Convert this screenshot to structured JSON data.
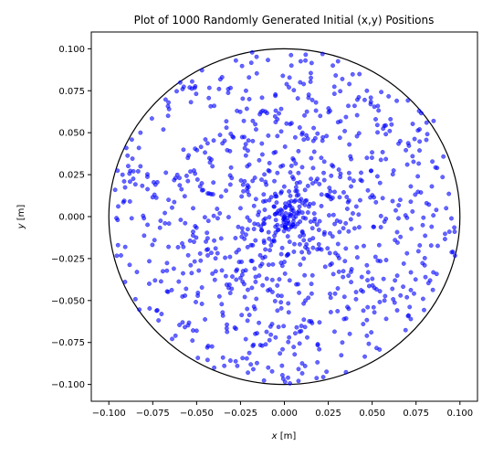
{
  "chart_data": {
    "type": "scatter",
    "title": "Plot of 1000 Randomly Generated Initial (x,y) Positions",
    "xlabel_var": "x",
    "xlabel_unit": " [m]",
    "ylabel_var": "y",
    "ylabel_unit": " [m]",
    "xlim": [
      -0.11,
      0.11
    ],
    "ylim": [
      -0.11,
      0.11
    ],
    "x_ticks": [
      -0.1,
      -0.075,
      -0.05,
      -0.025,
      0.0,
      0.025,
      0.05,
      0.075,
      0.1
    ],
    "x_tick_labels": [
      "−0.100",
      "−0.075",
      "−0.050",
      "−0.025",
      "0.000",
      "0.025",
      "0.050",
      "0.075",
      "0.100"
    ],
    "y_ticks": [
      -0.1,
      -0.075,
      -0.05,
      -0.025,
      0.0,
      0.025,
      0.05,
      0.075,
      0.1
    ],
    "y_tick_labels": [
      "−0.100",
      "−0.075",
      "−0.050",
      "−0.025",
      "0.000",
      "0.025",
      "0.050",
      "0.075",
      "0.100"
    ],
    "boundary_circle": {
      "cx": 0.0,
      "cy": 0.0,
      "r": 0.1,
      "color": "#000000"
    },
    "point_count": 1000,
    "point_color": "#0000ff",
    "point_alpha": 0.6,
    "grid": false,
    "points": [
      [
        0.0,
        0.0
      ],
      [
        0.004,
        0.09
      ],
      [
        0.012,
        0.093
      ],
      [
        0.009,
        0.08
      ],
      [
        0.011,
        0.079
      ],
      [
        -0.066,
        0.068
      ],
      [
        -0.058,
        0.076
      ],
      [
        -0.032,
        0.076
      ],
      [
        -0.02,
        0.07
      ],
      [
        0.033,
        0.082
      ],
      [
        0.037,
        0.079
      ],
      [
        0.047,
        0.075
      ],
      [
        0.064,
        0.069
      ],
      [
        0.081,
        0.056
      ],
      [
        0.085,
        0.057
      ],
      [
        0.077,
        0.052
      ],
      [
        -0.082,
        0.05
      ],
      [
        -0.086,
        0.027
      ],
      [
        -0.082,
        0.03
      ],
      [
        -0.088,
        0.009
      ],
      [
        -0.095,
        -0.002
      ],
      [
        -0.087,
        -0.001
      ],
      [
        -0.08,
        -0.001
      ],
      [
        -0.074,
        -0.014
      ],
      [
        -0.084,
        -0.033
      ],
      [
        -0.077,
        -0.04
      ],
      [
        -0.07,
        -0.058
      ],
      [
        -0.058,
        -0.063
      ],
      [
        -0.05,
        -0.068
      ],
      [
        -0.04,
        -0.09
      ],
      [
        -0.035,
        -0.084
      ],
      [
        -0.022,
        -0.073
      ],
      [
        -0.018,
        -0.077
      ],
      [
        -0.005,
        -0.072
      ],
      [
        0.013,
        -0.072
      ],
      [
        0.019,
        -0.076
      ],
      [
        0.033,
        -0.075
      ],
      [
        0.047,
        -0.071
      ],
      [
        0.072,
        -0.061
      ],
      [
        0.079,
        -0.049
      ],
      [
        0.083,
        -0.038
      ],
      [
        0.096,
        -0.021
      ],
      [
        0.094,
        -0.009
      ],
      [
        0.097,
        -0.009
      ],
      [
        0.081,
        0.008
      ],
      [
        0.084,
        0.018
      ],
      [
        0.076,
        0.024
      ],
      [
        0.073,
        0.036
      ],
      [
        0.087,
        0.029
      ],
      [
        -0.04,
        0.066
      ],
      [
        -0.027,
        0.063
      ],
      [
        -0.014,
        0.061
      ],
      [
        -0.004,
        0.058
      ],
      [
        0.018,
        0.068
      ],
      [
        0.026,
        0.063
      ],
      [
        0.04,
        0.066
      ],
      [
        0.052,
        0.058
      ],
      [
        0.06,
        0.051
      ],
      [
        0.066,
        0.045
      ],
      [
        0.07,
        0.031
      ],
      [
        0.072,
        0.018
      ],
      [
        0.066,
        0.01
      ],
      [
        0.065,
        -0.001
      ],
      [
        0.063,
        -0.014
      ],
      [
        0.068,
        -0.028
      ],
      [
        0.063,
        -0.038
      ],
      [
        0.057,
        -0.05
      ],
      [
        0.045,
        -0.056
      ],
      [
        0.034,
        -0.061
      ],
      [
        0.02,
        -0.063
      ],
      [
        0.007,
        -0.066
      ],
      [
        -0.007,
        -0.064
      ],
      [
        -0.021,
        -0.062
      ],
      [
        -0.035,
        -0.059
      ],
      [
        -0.047,
        -0.052
      ],
      [
        -0.056,
        -0.043
      ],
      [
        -0.063,
        -0.031
      ],
      [
        -0.066,
        -0.018
      ],
      [
        -0.068,
        -0.004
      ],
      [
        -0.066,
        0.01
      ],
      [
        -0.062,
        0.023
      ],
      [
        -0.055,
        0.035
      ],
      [
        -0.045,
        0.046
      ],
      [
        -0.033,
        0.053
      ],
      [
        -0.018,
        0.057
      ],
      [
        -0.004,
        0.048
      ],
      [
        0.01,
        0.049
      ],
      [
        0.024,
        0.048
      ],
      [
        0.037,
        0.043
      ],
      [
        0.047,
        0.035
      ],
      [
        0.053,
        0.024
      ],
      [
        0.056,
        0.011
      ],
      [
        0.057,
        -0.003
      ],
      [
        0.054,
        -0.017
      ],
      [
        0.047,
        -0.029
      ],
      [
        0.038,
        -0.039
      ],
      [
        0.026,
        -0.046
      ],
      [
        0.012,
        -0.05
      ],
      [
        -0.002,
        -0.051
      ],
      [
        -0.016,
        -0.049
      ],
      [
        -0.03,
        -0.043
      ],
      [
        -0.041,
        -0.034
      ],
      [
        -0.048,
        -0.022
      ],
      [
        -0.052,
        -0.009
      ],
      [
        -0.052,
        0.005
      ],
      [
        -0.048,
        0.018
      ],
      [
        -0.041,
        0.03
      ],
      [
        -0.031,
        0.039
      ],
      [
        -0.018,
        0.045
      ],
      [
        -0.006,
        0.038
      ],
      [
        0.008,
        0.039
      ],
      [
        0.021,
        0.035
      ],
      [
        0.031,
        0.028
      ],
      [
        0.038,
        0.018
      ],
      [
        0.041,
        0.006
      ],
      [
        0.04,
        -0.007
      ],
      [
        0.035,
        -0.019
      ],
      [
        0.027,
        -0.028
      ],
      [
        0.016,
        -0.035
      ],
      [
        0.003,
        -0.038
      ],
      [
        -0.01,
        -0.037
      ],
      [
        -0.022,
        -0.032
      ],
      [
        -0.031,
        -0.024
      ],
      [
        -0.036,
        -0.013
      ],
      [
        -0.038,
        -0.001
      ],
      [
        -0.036,
        0.012
      ],
      [
        -0.03,
        0.023
      ],
      [
        -0.02,
        0.031
      ],
      [
        -0.004,
        0.026
      ],
      [
        0.008,
        0.026
      ],
      [
        0.018,
        0.021
      ],
      [
        0.025,
        0.012
      ],
      [
        0.028,
        0.001
      ],
      [
        0.026,
        -0.01
      ],
      [
        0.02,
        -0.019
      ],
      [
        0.011,
        -0.025
      ],
      [
        0.0,
        -0.027
      ],
      [
        -0.011,
        -0.024
      ],
      [
        -0.019,
        -0.017
      ],
      [
        -0.024,
        -0.007
      ],
      [
        -0.025,
        0.005
      ],
      [
        -0.021,
        0.015
      ],
      [
        -0.013,
        0.022
      ],
      [
        -0.002,
        0.014
      ],
      [
        0.008,
        0.013
      ],
      [
        0.014,
        0.006
      ],
      [
        0.015,
        -0.003
      ],
      [
        0.011,
        -0.011
      ],
      [
        0.003,
        -0.015
      ],
      [
        -0.006,
        -0.014
      ],
      [
        -0.013,
        -0.008
      ],
      [
        -0.015,
        0.001
      ],
      [
        -0.012,
        0.009
      ],
      [
        0.004,
        0.004
      ],
      [
        -0.004,
        -0.005
      ],
      [
        0.006,
        -0.006
      ],
      [
        -0.006,
        0.006
      ]
    ]
  }
}
